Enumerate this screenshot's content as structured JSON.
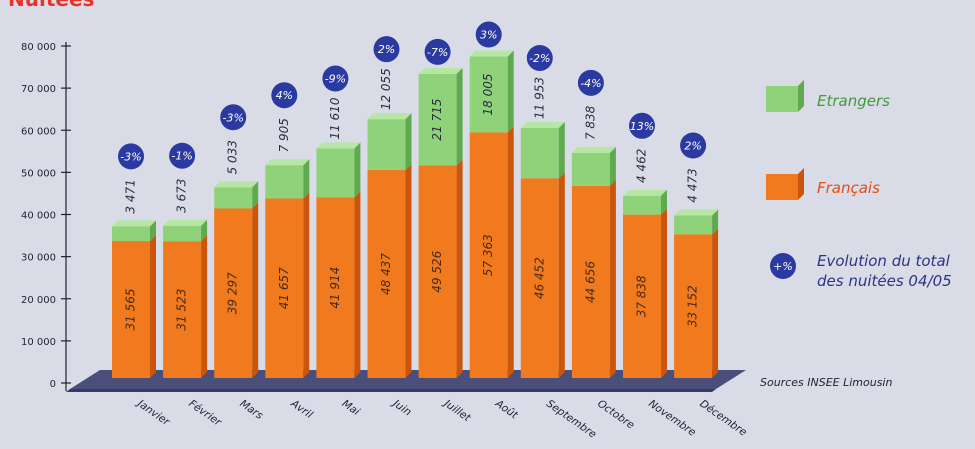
{
  "title": "Nuitées",
  "source": "Sources INSEE Limousin",
  "colors": {
    "francais": "#f07a1d",
    "francais_dark": "#c9560c",
    "etrangers": "#8fd27a",
    "etrangers_dark": "#5fa94e",
    "badge": "#2b3aa0",
    "floor": "#4a4e7a",
    "etrangers_text": "#3f9a3a",
    "francais_text": "#e34b16",
    "evolution_text": "#2a3585"
  },
  "chart_data": {
    "type": "bar",
    "stacked": true,
    "categories": [
      "Janvier",
      "Février",
      "Mars",
      "Avril",
      "Mai",
      "Juin",
      "Juillet",
      "Août",
      "Septembre",
      "Octobre",
      "Novembre",
      "Décembre"
    ],
    "series": [
      {
        "name": "Français",
        "values": [
          31565,
          31523,
          39297,
          41657,
          41914,
          48437,
          49526,
          57363,
          46452,
          44656,
          37838,
          33152
        ],
        "labels": [
          "31 565",
          "31 523",
          "39 297",
          "41 657",
          "41 914",
          "48 437",
          "49 526",
          "57 363",
          "46 452",
          "44 656",
          "37 838",
          "33 152"
        ]
      },
      {
        "name": "Etrangers",
        "values": [
          3471,
          3673,
          5033,
          7905,
          11610,
          12055,
          21715,
          18005,
          11953,
          7838,
          4462,
          4473
        ],
        "labels": [
          "3 471",
          "3 673",
          "5 033",
          "7 905",
          "11 610",
          "12 055",
          "21 715",
          "18 005",
          "11 953",
          "7 838",
          "4 462",
          "4 473"
        ]
      }
    ],
    "evolution": [
      "-3%",
      "-1%",
      "-3%",
      "4%",
      "-9%",
      "2%",
      "-7%",
      "3%",
      "-2%",
      "-4%",
      "13%",
      "2%"
    ],
    "ylim": [
      0,
      80000
    ],
    "yticks": [
      0,
      10000,
      20000,
      30000,
      40000,
      50000,
      60000,
      70000,
      80000
    ],
    "ytick_labels": [
      "0",
      "10 000",
      "20 000",
      "30 000",
      "40 000",
      "50 000",
      "60 000",
      "70 000",
      "80 000"
    ],
    "legend": [
      {
        "label": "Etrangers"
      },
      {
        "label": "Français"
      },
      {
        "label": "Evolution du total des nuitées 04/05",
        "line1": "Evolution du total",
        "line2": "des nuitées 04/05",
        "badge": "+%"
      }
    ],
    "legend_position": "right",
    "grid": false
  }
}
